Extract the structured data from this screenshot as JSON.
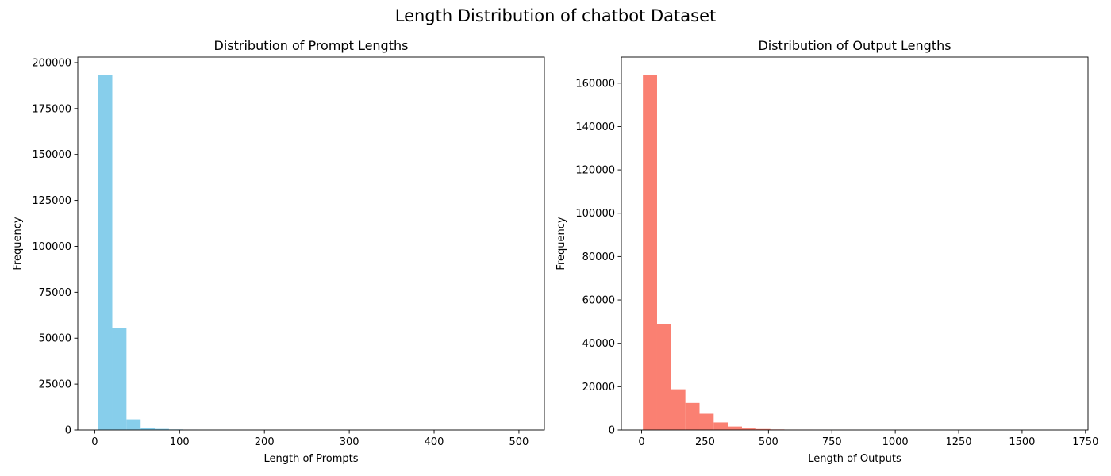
{
  "figure": {
    "title": "Length Distribution of chatbot Dataset"
  },
  "chart_data": [
    {
      "type": "bar",
      "title": "Distribution of Prompt Lengths",
      "xlabel": "Length of Prompts",
      "ylabel": "Frequency",
      "color": "#87ceeb",
      "xlim": [
        -20,
        530
      ],
      "ylim": [
        0,
        203000
      ],
      "xticks": [
        0,
        100,
        200,
        300,
        400,
        500
      ],
      "yticks": [
        0,
        25000,
        50000,
        75000,
        100000,
        125000,
        150000,
        175000,
        200000
      ],
      "bin_edges": [
        4,
        20.7,
        37.4,
        54.1,
        70.8,
        87.5,
        104.2,
        120.9,
        137.6,
        154.3,
        171,
        187.7,
        204.4,
        221.1,
        237.8,
        254.5,
        271.2,
        287.9,
        304.6,
        321.3,
        338,
        354.7,
        371.4,
        388.1,
        404.8,
        421.5,
        438.2,
        454.9,
        471.6,
        488.3,
        505
      ],
      "values": [
        193500,
        55500,
        5800,
        1300,
        600,
        300,
        150,
        80,
        50,
        30,
        20,
        15,
        10,
        8,
        6,
        5,
        4,
        3,
        3,
        2,
        2,
        2,
        1,
        1,
        1,
        1,
        1,
        1,
        1,
        1
      ]
    },
    {
      "type": "bar",
      "title": "Distribution of Output Lengths",
      "xlabel": "Length of Outputs",
      "ylabel": "Frequency",
      "color": "#fa8072",
      "xlim": [
        -80,
        1760
      ],
      "ylim": [
        0,
        172000
      ],
      "xticks": [
        0,
        250,
        500,
        750,
        1000,
        1250,
        1500,
        1750
      ],
      "yticks": [
        0,
        20000,
        40000,
        60000,
        80000,
        100000,
        120000,
        140000,
        160000
      ],
      "bin_edges": [
        5,
        60.8,
        116.6,
        172.4,
        228.2,
        284,
        339.8,
        395.6,
        451.4,
        507.2,
        563,
        618.8,
        674.6,
        730.4,
        786.2,
        842,
        897.8,
        953.6,
        1009.4,
        1065.2,
        1121,
        1176.8,
        1232.6,
        1288.4,
        1344.2,
        1400,
        1455.8,
        1511.6,
        1567.4,
        1623.2,
        1679
      ],
      "values": [
        163800,
        48700,
        18800,
        12500,
        7500,
        3500,
        1600,
        700,
        450,
        250,
        150,
        100,
        60,
        40,
        30,
        20,
        15,
        10,
        8,
        6,
        5,
        4,
        3,
        2,
        2,
        1,
        1,
        1,
        1,
        1
      ]
    }
  ]
}
